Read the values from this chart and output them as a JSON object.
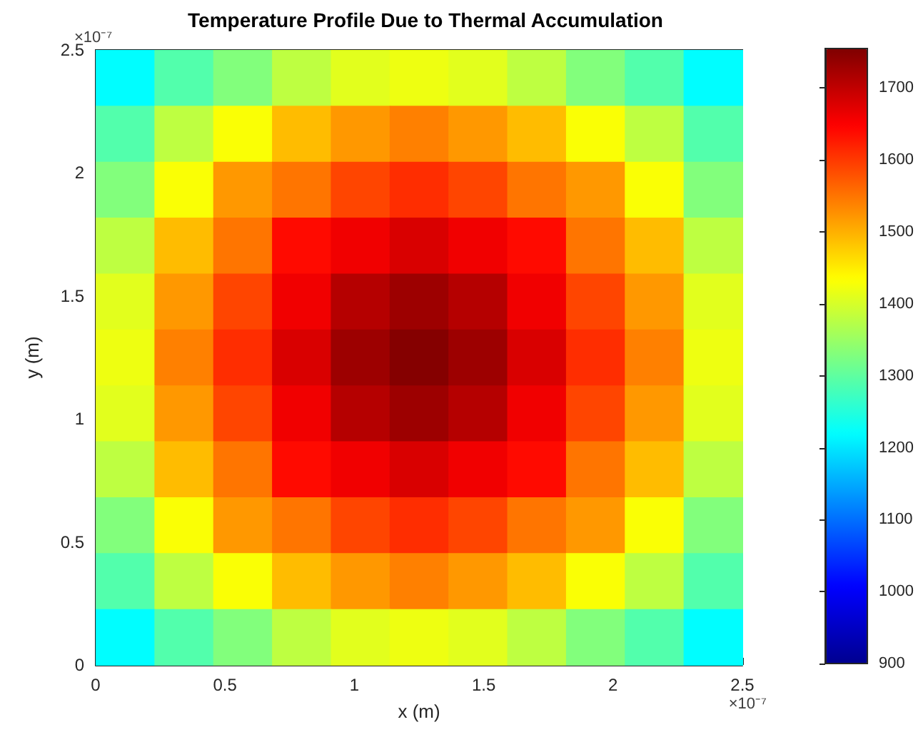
{
  "chart_data": {
    "type": "heatmap",
    "title": "Temperature Profile Due to Thermal Accumulation",
    "xlabel": "x (m)",
    "ylabel": "y (m)",
    "annotations": [
      "×10⁻⁷",
      "×10⁻⁷"
    ],
    "cells": [
      [
        1220,
        1290,
        1330,
        1380,
        1410,
        1420,
        1410,
        1380,
        1330,
        1290,
        1220
      ],
      [
        1290,
        1380,
        1430,
        1490,
        1520,
        1540,
        1520,
        1490,
        1430,
        1380,
        1290
      ],
      [
        1330,
        1430,
        1520,
        1550,
        1590,
        1610,
        1590,
        1550,
        1520,
        1430,
        1330
      ],
      [
        1380,
        1490,
        1550,
        1640,
        1660,
        1680,
        1660,
        1640,
        1550,
        1490,
        1380
      ],
      [
        1410,
        1520,
        1590,
        1660,
        1710,
        1730,
        1710,
        1660,
        1590,
        1520,
        1410
      ],
      [
        1420,
        1540,
        1610,
        1680,
        1730,
        1750,
        1730,
        1680,
        1610,
        1540,
        1420
      ],
      [
        1410,
        1520,
        1590,
        1660,
        1710,
        1730,
        1710,
        1660,
        1590,
        1520,
        1410
      ],
      [
        1380,
        1490,
        1550,
        1640,
        1660,
        1680,
        1660,
        1640,
        1550,
        1490,
        1380
      ],
      [
        1330,
        1430,
        1520,
        1550,
        1590,
        1610,
        1590,
        1550,
        1520,
        1430,
        1330
      ],
      [
        1290,
        1380,
        1430,
        1490,
        1520,
        1540,
        1520,
        1490,
        1430,
        1380,
        1290
      ],
      [
        1220,
        1290,
        1330,
        1380,
        1410,
        1420,
        1410,
        1380,
        1330,
        1290,
        1220
      ]
    ],
    "clim": [
      900,
      1755
    ],
    "cticks": [
      900,
      1000,
      1100,
      1200,
      1300,
      1400,
      1500,
      1600,
      1700
    ],
    "xlim": [
      0,
      2.5
    ],
    "xticks": [
      0,
      0.5,
      1,
      1.5,
      2,
      2.5
    ],
    "ylim": [
      0,
      2.5
    ],
    "yticks": [
      0,
      0.5,
      1,
      1.5,
      2,
      2.5
    ],
    "grid": false
  }
}
